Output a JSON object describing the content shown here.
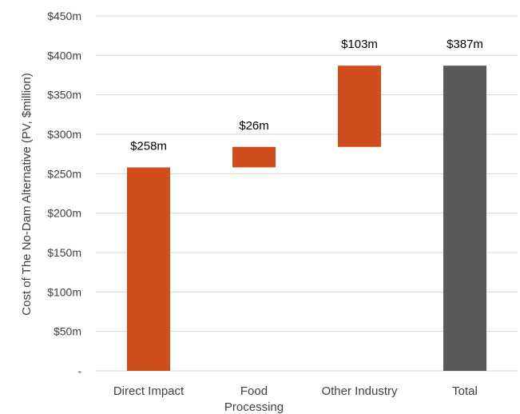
{
  "chart_data": {
    "type": "bar",
    "subtype": "waterfall",
    "title": "",
    "xlabel": "",
    "ylabel": "Cost of The No-Dam Alternative (PV, $million)",
    "ylim": [
      0,
      450
    ],
    "y_ticks": [
      0,
      50,
      100,
      150,
      200,
      250,
      300,
      350,
      400,
      450
    ],
    "y_tick_labels": [
      "-",
      "$50m",
      "$100m",
      "$150m",
      "$200m",
      "$250m",
      "$300m",
      "$350m",
      "$400m",
      "$450m"
    ],
    "grid": true,
    "legend": "none",
    "categories": [
      "Direct Impact",
      "Food Processing",
      "Other Industry",
      "Total"
    ],
    "category_label_lines": [
      [
        "Direct Impact"
      ],
      [
        "Food",
        "Processing"
      ],
      [
        "Other Industry"
      ],
      [
        "Total"
      ]
    ],
    "bars": [
      {
        "category": "Direct Impact",
        "start": 0,
        "end": 258,
        "value": 258,
        "label": "$258m",
        "kind": "increase"
      },
      {
        "category": "Food Processing",
        "start": 258,
        "end": 284,
        "value": 26,
        "label": "$26m",
        "kind": "increase"
      },
      {
        "category": "Other Industry",
        "start": 284,
        "end": 387,
        "value": 103,
        "label": "$103m",
        "kind": "increase"
      },
      {
        "category": "Total",
        "start": 0,
        "end": 387,
        "value": 387,
        "label": "$387m",
        "kind": "total"
      }
    ],
    "colors": {
      "increase": "#d04e1e",
      "total": "#595959",
      "grid": "#d9d9d9"
    }
  }
}
